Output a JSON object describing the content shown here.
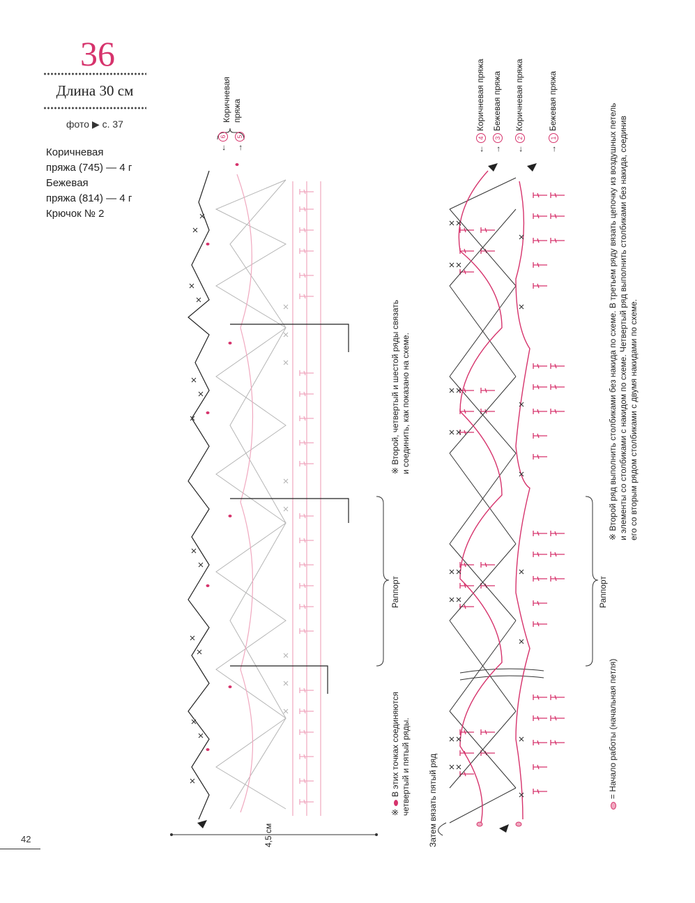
{
  "header": {
    "pattern_number": "36",
    "length": "Длина 30 см",
    "photo_ref": "фото ▶ с. 37"
  },
  "materials": [
    "Коричневая",
    "пряжа (745) — 4 г",
    "Бежевая",
    "пряжа (814) — 4 г",
    "Крючок № 2"
  ],
  "page_number": "42",
  "left_diagram": {
    "rows": [
      {
        "marker": "6",
        "arrow": "←"
      },
      {
        "marker": "5",
        "arrow": "→"
      }
    ],
    "yarn_label_line1": "Коричневая",
    "yarn_label_line2": "пряжа",
    "note_line1": "※ Второй, четвертый и шестой ряды связать",
    "note_line2": "и соединить, как показано на схеме.",
    "rapport": "Раппорт",
    "width_label": "4,5 см",
    "connect_note_prefix": "※",
    "connect_note_line1": "В этих точках соединяются",
    "connect_note_line2": "четвертый и пятый ряды."
  },
  "right_diagram": {
    "rows": [
      {
        "marker": "4",
        "arrow": "←",
        "label": "Коричневая пряжа"
      },
      {
        "marker": "3",
        "arrow": "→",
        "label": "Бежевая пряжа"
      },
      {
        "marker": "2",
        "arrow": "←",
        "label": "Коричневая пряжа"
      },
      {
        "marker": "1",
        "arrow": "→",
        "label": "Бежевая пряжа"
      }
    ],
    "note_line1": "※ Второй ряд выполнить столбиками без накида по схеме. В третьем ряду вязать цепочку из воздушных петель",
    "note_line2": "и элементы со столбиками с накидом по схеме. Четвертый ряд выполнить столбиками без накида, соединив",
    "note_line3": "его со вторым рядом столбиками с двумя накидами по схеме.",
    "rapport": "Раппорт",
    "then_note": "Затем вязать пятый ряд",
    "start_note": "= Начало работы (начальная петля)"
  },
  "colors": {
    "accent_pink": "#d6336c",
    "light_pink": "#f0a8bf",
    "brown_ink": "#222222",
    "light_gray": "#b5b5b5"
  }
}
